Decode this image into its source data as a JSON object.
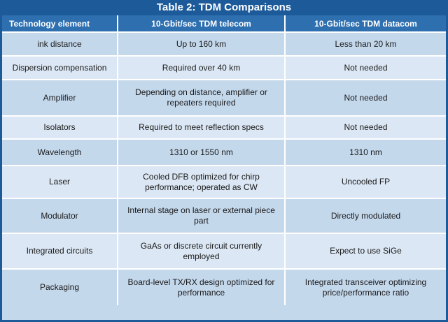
{
  "table": {
    "title": "Table 2: TDM Comparisons",
    "headers": [
      "Technology element",
      "10-Gbit/sec TDM telecom",
      "10-Gbit/sec TDM datacom"
    ],
    "rows": [
      [
        "ink distance",
        "Up to 160 km",
        "Less than 20 km"
      ],
      [
        "Dispersion compensation",
        "Required over 40 km",
        "Not needed"
      ],
      [
        "Amplifier",
        "Depending on distance, amplifier or repeaters required",
        "Not needed"
      ],
      [
        "Isolators",
        "Required to meet reflection specs",
        "Not needed"
      ],
      [
        "Wavelength",
        "1310 or 1550 nm",
        "1310 nm"
      ],
      [
        "Laser",
        "Cooled DFB optimized for chirp performance; operated as CW",
        "Uncooled FP"
      ],
      [
        "Modulator",
        "Internal stage on laser or external piece part",
        "Directly modulated"
      ],
      [
        "Integrated circuits",
        "GaAs or discrete circuit currently employed",
        "Expect to use SiGe"
      ],
      [
        "Packaging",
        "Board-level TX/RX design optimized for performance",
        "Integrated transceiver optimizing price/performance ratio"
      ]
    ]
  },
  "colors": {
    "title_bar": "#1c5a9a",
    "header_row": "#2e6fb0",
    "row_a": "#c4d8ec",
    "row_b": "#dbe7f4"
  }
}
